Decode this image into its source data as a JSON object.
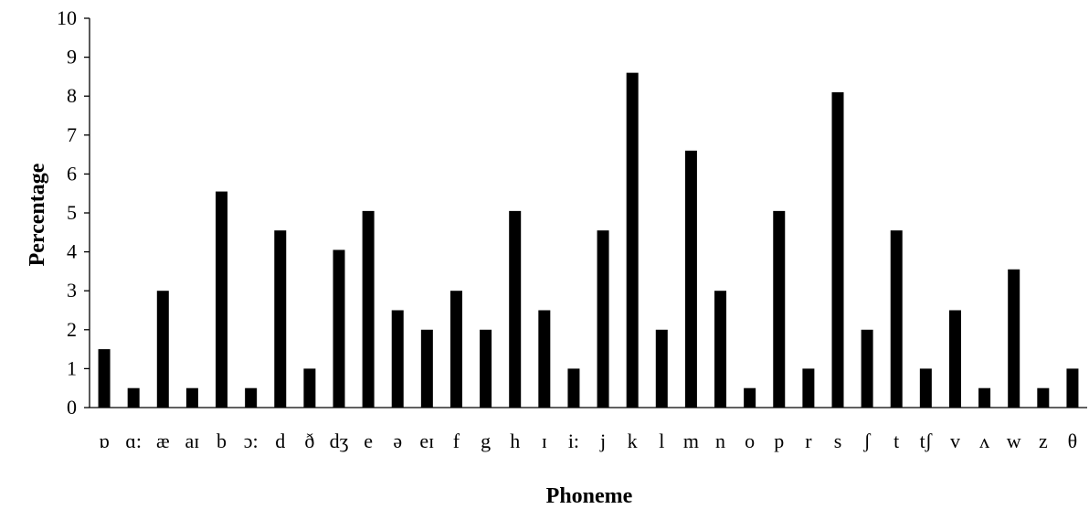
{
  "chart_data": {
    "type": "bar",
    "title": "",
    "xlabel": "Phoneme",
    "ylabel": "Percentage",
    "ylim": [
      0,
      10
    ],
    "yticks": [
      "0",
      "1",
      "2",
      "3",
      "4",
      "5",
      "6",
      "7",
      "8",
      "9",
      "10"
    ],
    "grid": false,
    "legend": "none",
    "bar_color": "#000000",
    "categories": [
      "ɒ",
      "ɑ:",
      "æ",
      "aɪ",
      "b",
      "ɔ:",
      "d",
      "ð",
      "dʒ",
      "e",
      "ə",
      "eɪ",
      "f",
      "g",
      "h",
      "ɪ",
      "i:",
      "j",
      "k",
      "l",
      "m",
      "n",
      "o",
      "p",
      "r",
      "s",
      "ʃ",
      "t",
      "tʃ",
      "v",
      "ʌ",
      "w",
      "z",
      "θ"
    ],
    "values": [
      1.5,
      0.5,
      3.0,
      0.5,
      5.55,
      0.5,
      4.55,
      1.0,
      4.05,
      5.05,
      2.5,
      2.0,
      3.0,
      2.0,
      5.05,
      2.5,
      1.0,
      4.55,
      8.6,
      2.0,
      6.6,
      3.0,
      0.5,
      5.05,
      1.0,
      8.1,
      2.0,
      4.55,
      1.0,
      2.5,
      0.5,
      3.55,
      0.5,
      1.0
    ]
  }
}
